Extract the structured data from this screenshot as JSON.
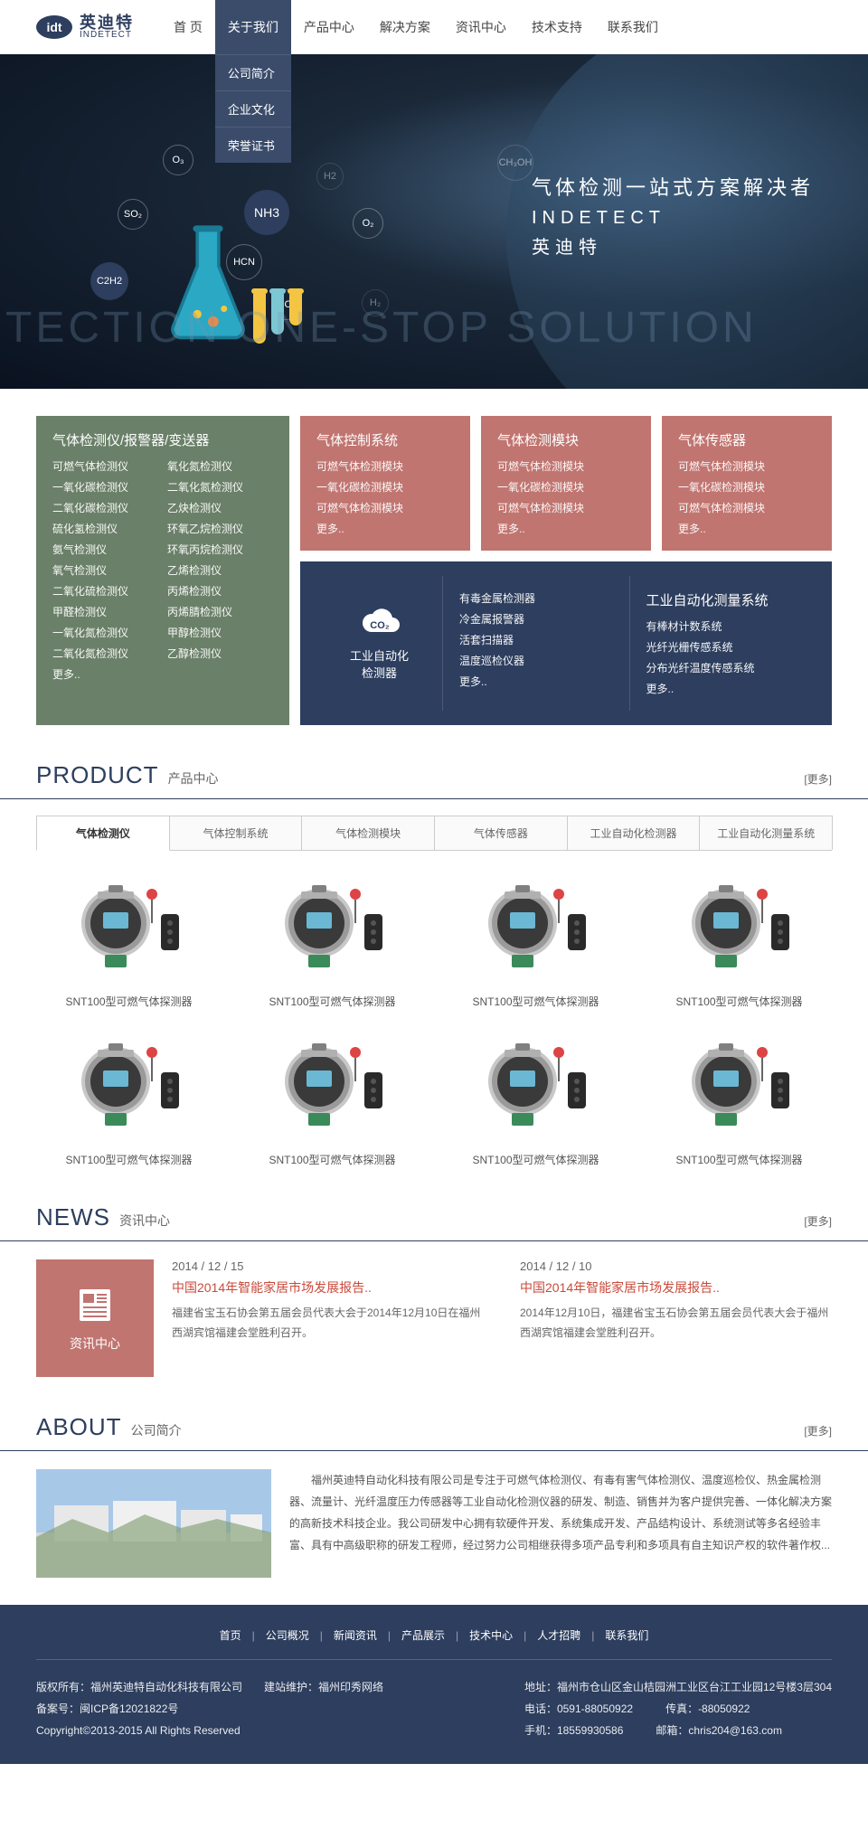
{
  "logo": {
    "icon": "idt",
    "cn": "英迪特",
    "en": "INDETECT"
  },
  "nav": [
    "首 页",
    "关于我们",
    "产品中心",
    "解决方案",
    "资讯中心",
    "技术支持",
    "联系我们"
  ],
  "dropdown": [
    "公司简介",
    "企业文化",
    "荣誉证书"
  ],
  "hero": {
    "title": "气体检测一站式方案解决者",
    "sub1": "INDETECT",
    "sub2": "英迪特",
    "bg_text": "ETECTION ONE-STOP SOLUTION",
    "molecules": [
      "O₃",
      "SO₂",
      "NH3",
      "HCN",
      "C2H2",
      "NO₂",
      "O₂",
      "H2",
      "H₂",
      "CH₃OH"
    ],
    "flask_color": "#2aa8c4",
    "tube_colors": [
      "#f4c542",
      "#7cc7d4",
      "#f4c542"
    ]
  },
  "categories": {
    "green": {
      "title": "气体检测仪/报警器/变送器",
      "items": [
        "可燃气体检测仪",
        "氧化氮检测仪",
        "一氧化碳检测仪",
        "二氧化氮检测仪",
        "二氧化碳检测仪",
        "乙炔检测仪",
        "硫化氢检测仪",
        "环氧乙烷检测仪",
        "氨气检测仪",
        "环氧丙烷检测仪",
        "氧气检测仪",
        "乙烯检测仪",
        "二氧化硫检测仪",
        "丙烯检测仪",
        "甲醛检测仪",
        "丙烯腈检测仪",
        "一氧化氮检测仪",
        "甲醇检测仪",
        "二氧化氮检测仪",
        "乙醇检测仪",
        "更多.."
      ],
      "bg": "#6a8068"
    },
    "red": [
      {
        "title": "气体控制系统",
        "items": [
          "可燃气体检测模块",
          "一氧化碳检测模块",
          "可燃气体检测模块",
          "更多.."
        ]
      },
      {
        "title": "气体检测模块",
        "items": [
          "可燃气体检测模块",
          "一氧化碳检测模块",
          "可燃气体检测模块",
          "更多.."
        ]
      },
      {
        "title": "气体传感器",
        "items": [
          "可燃气体检测模块",
          "一氧化碳检测模块",
          "可燃气体检测模块",
          "更多.."
        ]
      }
    ],
    "red_bg": "#c17570",
    "navy": {
      "icon_label": "工业自动化\n检测器",
      "col1": [
        "有毒金属检测器",
        "冷金属报警器",
        "活套扫描器",
        "温度巡检仪器",
        "更多.."
      ],
      "col2_title": "工业自动化测量系统",
      "col2": [
        "有棒材计数系统",
        "光纤光栅传感系统",
        "分布光纤温度传感系统",
        "更多.."
      ],
      "bg": "#2d3e5e"
    }
  },
  "product": {
    "head_en": "PRODUCT",
    "head_cn": "产品中心",
    "more": "[更多]",
    "tabs": [
      "气体检测仪",
      "气体控制系统",
      "气体检测模块",
      "气体传感器",
      "工业自动化检测器",
      "工业自动化测量系统"
    ],
    "item_name": "SNT100型可燃气体探测器"
  },
  "news": {
    "head_en": "NEWS",
    "head_cn": "资讯中心",
    "more": "[更多]",
    "badge": "资讯中心",
    "items": [
      {
        "date": "2014 / 12 / 15",
        "title": "中国2014年智能家居市场发展报告..",
        "desc": "福建省宝玉石协会第五届会员代表大会于2014年12月10日在福州西湖宾馆福建会堂胜利召开。"
      },
      {
        "date": "2014 / 12 / 10",
        "title": "中国2014年智能家居市场发展报告..",
        "desc": "2014年12月10日，福建省宝玉石协会第五届会员代表大会于福州西湖宾馆福建会堂胜利召开。"
      }
    ]
  },
  "about": {
    "head_en": "ABOUT",
    "head_cn": "公司简介",
    "more": "[更多]",
    "text": "福州英迪特自动化科技有限公司是专注于可燃气体检测仪、有毒有害气体检测仪、温度巡检仪、热金属检测器、流量计、光纤温度压力传感器等工业自动化检测仪器的研发、制造、销售并为客户提供完善、一体化解决方案的高新技术科技企业。我公司研发中心拥有软硬件开发、系统集成开发、产品结构设计、系统测试等多名经验丰富、具有中高级职称的研发工程师，经过努力公司相继获得多项产品专利和多项具有自主知识产权的软件著作权..."
  },
  "footer": {
    "links": [
      "首页",
      "公司概况",
      "新闻资讯",
      "产品展示",
      "技术中心",
      "人才招聘",
      "联系我们"
    ],
    "l1": "版权所有：福州英迪特自动化科技有限公司　　建站维护：福州印秀网络",
    "l2": "备案号：闽ICP备12021822号",
    "l3": "Copyright©2013-2015 All Rights Reserved",
    "r1": "地址：福州市仓山区金山桔园洲工业区台江工业园12号楼3层304",
    "r2a": "电话：0591-88050922",
    "r2b": "传真：-88050922",
    "r3a": "手机：18559930586",
    "r3b": "邮箱：chris204@163.com"
  },
  "colors": {
    "brand": "#2d3e5e",
    "accent_red": "#c17570",
    "accent_green": "#6a8068"
  }
}
